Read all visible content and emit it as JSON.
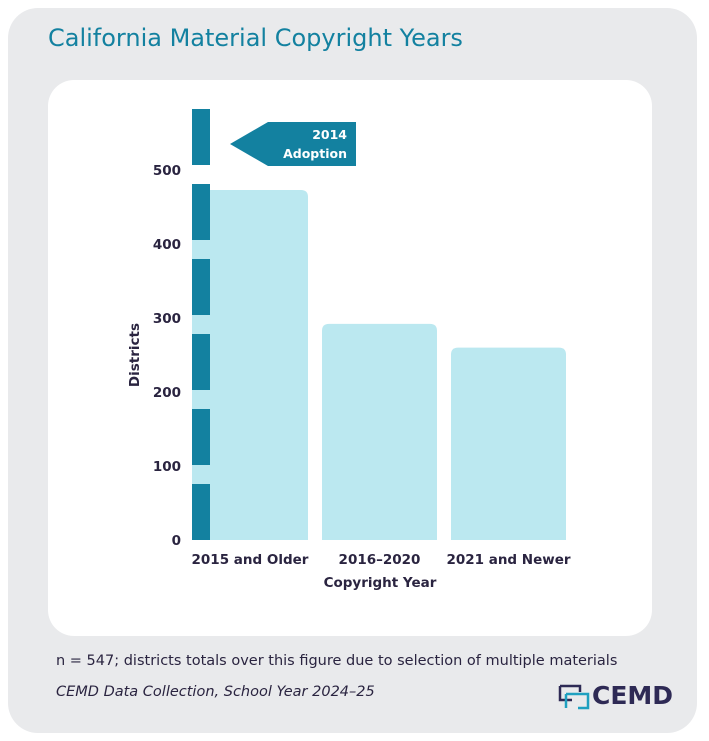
{
  "title": "California Material Copyright Years",
  "note": "n = 547; districts totals over this figure due to selection of multiple materials",
  "source": "CEMD Data Collection, School Year 2024–25",
  "logo_text": "CEMD",
  "chart_data": {
    "type": "bar",
    "title": "California Material Copyright Years",
    "categories": [
      "2015 and Older",
      "2016–2020",
      "2021 and Newer"
    ],
    "values": [
      473,
      292,
      260
    ],
    "xlabel": "Copyright Year",
    "ylabel": "Districts",
    "ylim": [
      0,
      500
    ],
    "yticks": [
      0,
      100,
      200,
      300,
      400,
      500
    ],
    "grid": false,
    "annotation": {
      "line1": "2014",
      "line2": "Adoption",
      "style": "dashed vertical line left of first bar"
    },
    "colors": {
      "bar": "#bbe8f0",
      "annotation": "#1381a0",
      "text": "#2a2440"
    }
  }
}
